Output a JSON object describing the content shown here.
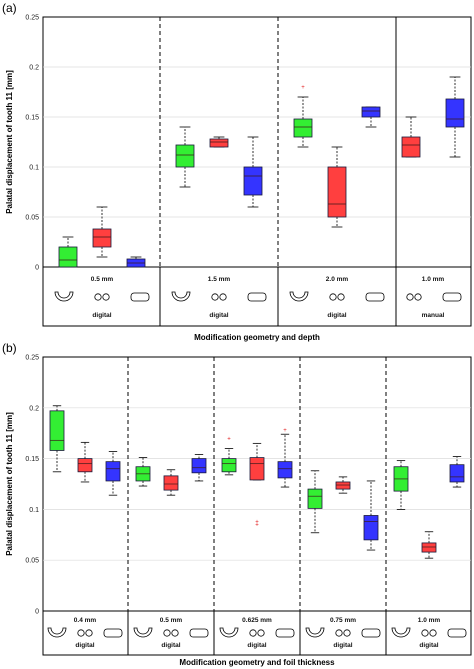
{
  "colors": {
    "green": "#33ee33",
    "red": "#ff3f3f",
    "blue": "#3434ff",
    "outlier": "#e31a1c"
  },
  "chart_data": [
    {
      "panel_label": "(a)",
      "type": "box",
      "ylabel": "Palatal displacement of tooth 11 [mm]",
      "xlabel": "Modification geometry and depth",
      "ylim": [
        0,
        0.25
      ],
      "yticks": [
        "0",
        "0.05",
        "0.1",
        "0.15",
        "0.2",
        "0.25"
      ],
      "groups": [
        {
          "label": "0.5 mm",
          "method": "digital",
          "boxes": [
            {
              "color": "green",
              "min": 0.0,
              "q1": 0.0,
              "median": 0.007,
              "q3": 0.02,
              "max": 0.03
            },
            {
              "color": "red",
              "min": 0.01,
              "q1": 0.02,
              "median": 0.03,
              "q3": 0.038,
              "max": 0.06
            },
            {
              "color": "blue",
              "min": 0.0,
              "q1": 0.0,
              "median": 0.004,
              "q3": 0.008,
              "max": 0.01
            }
          ]
        },
        {
          "label": "1.5 mm",
          "method": "digital",
          "boxes": [
            {
              "color": "green",
              "min": 0.08,
              "q1": 0.1,
              "median": 0.112,
              "q3": 0.122,
              "max": 0.14
            },
            {
              "color": "red",
              "min": 0.12,
              "q1": 0.12,
              "median": 0.125,
              "q3": 0.128,
              "max": 0.13
            },
            {
              "color": "blue",
              "min": 0.06,
              "q1": 0.072,
              "median": 0.091,
              "q3": 0.1,
              "max": 0.13
            }
          ]
        },
        {
          "label": "2.0 mm",
          "method": "digital",
          "boxes": [
            {
              "color": "green",
              "min": 0.12,
              "q1": 0.13,
              "median": 0.14,
              "q3": 0.148,
              "max": 0.17,
              "outliers": [
                0.18
              ]
            },
            {
              "color": "red",
              "min": 0.04,
              "q1": 0.05,
              "median": 0.063,
              "q3": 0.1,
              "max": 0.12
            },
            {
              "color": "blue",
              "min": 0.14,
              "q1": 0.15,
              "median": 0.156,
              "q3": 0.16,
              "max": 0.16
            }
          ]
        },
        {
          "label": "1.0 mm",
          "method": "manual",
          "boxes": [
            {
              "color": "red",
              "min": 0.11,
              "q1": 0.11,
              "median": 0.122,
              "q3": 0.13,
              "max": 0.15
            },
            {
              "color": "blue",
              "min": 0.11,
              "q1": 0.14,
              "median": 0.148,
              "q3": 0.168,
              "max": 0.19
            }
          ]
        }
      ]
    },
    {
      "panel_label": "(b)",
      "type": "box",
      "ylabel": "Palatal displacement of tooth 11 [mm]",
      "xlabel": "Modification geometry and foil thickness",
      "ylim": [
        0,
        0.25
      ],
      "yticks": [
        "0",
        "0.05",
        "0.1",
        "0.15",
        "0.2",
        "0.25"
      ],
      "groups": [
        {
          "label": "0.4 mm",
          "method": "digital",
          "boxes": [
            {
              "color": "green",
              "min": 0.137,
              "q1": 0.158,
              "median": 0.168,
              "q3": 0.197,
              "max": 0.202
            },
            {
              "color": "red",
              "min": 0.127,
              "q1": 0.137,
              "median": 0.145,
              "q3": 0.15,
              "max": 0.166
            },
            {
              "color": "blue",
              "min": 0.114,
              "q1": 0.128,
              "median": 0.14,
              "q3": 0.147,
              "max": 0.157
            }
          ]
        },
        {
          "label": "0.5 mm",
          "method": "digital",
          "boxes": [
            {
              "color": "green",
              "min": 0.123,
              "q1": 0.128,
              "median": 0.135,
              "q3": 0.142,
              "max": 0.151
            },
            {
              "color": "red",
              "min": 0.114,
              "q1": 0.119,
              "median": 0.125,
              "q3": 0.133,
              "max": 0.139
            },
            {
              "color": "blue",
              "min": 0.128,
              "q1": 0.136,
              "median": 0.141,
              "q3": 0.15,
              "max": 0.154
            }
          ]
        },
        {
          "label": "0.625 mm",
          "method": "digital",
          "boxes": [
            {
              "color": "green",
              "min": 0.134,
              "q1": 0.137,
              "median": 0.145,
              "q3": 0.15,
              "max": 0.16,
              "outliers": [
                0.17
              ]
            },
            {
              "color": "red",
              "min": 0.129,
              "q1": 0.129,
              "median": 0.145,
              "q3": 0.151,
              "max": 0.165,
              "outliers": [
                0.085,
                0.088
              ]
            },
            {
              "color": "blue",
              "min": 0.122,
              "q1": 0.131,
              "median": 0.14,
              "q3": 0.147,
              "max": 0.174,
              "outliers": [
                0.178
              ]
            }
          ]
        },
        {
          "label": "0.75 mm",
          "method": "digital",
          "boxes": [
            {
              "color": "green",
              "min": 0.077,
              "q1": 0.101,
              "median": 0.113,
              "q3": 0.12,
              "max": 0.138
            },
            {
              "color": "red",
              "min": 0.116,
              "q1": 0.12,
              "median": 0.124,
              "q3": 0.127,
              "max": 0.132
            },
            {
              "color": "blue",
              "min": 0.06,
              "q1": 0.07,
              "median": 0.088,
              "q3": 0.094,
              "max": 0.128
            }
          ]
        },
        {
          "label": "1.0 mm",
          "method": "digital",
          "boxes": [
            {
              "color": "green",
              "min": 0.1,
              "q1": 0.118,
              "median": 0.13,
              "q3": 0.142,
              "max": 0.148
            },
            {
              "color": "red",
              "min": 0.052,
              "q1": 0.058,
              "median": 0.063,
              "q3": 0.067,
              "max": 0.078
            },
            {
              "color": "blue",
              "min": 0.122,
              "q1": 0.127,
              "median": 0.132,
              "q3": 0.144,
              "max": 0.152
            }
          ]
        }
      ]
    }
  ]
}
